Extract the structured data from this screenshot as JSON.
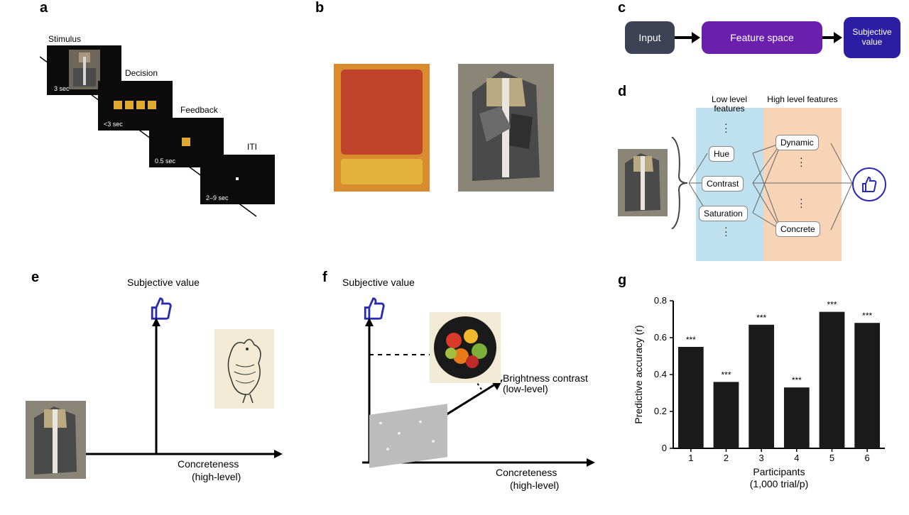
{
  "labels": {
    "a": "a",
    "b": "b",
    "c": "c",
    "d": "d",
    "e": "e",
    "f": "f",
    "g": "g"
  },
  "panel_a": {
    "cap_stimulus": "Stimulus",
    "cap_decision": "Decision",
    "cap_feedback": "Feedback",
    "cap_iti": "ITI",
    "t_stimulus": "3 sec",
    "t_decision": "<3 sec",
    "t_feedback": "0.5 sec",
    "t_iti": "2–9 sec"
  },
  "panel_c": {
    "input": "Input",
    "feature": "Feature space",
    "subj": "Subjective value",
    "colors": {
      "input_bg": "#3d4254",
      "feature_bg": "#6a1fad",
      "subj_bg": "#2b1ea2",
      "arrow": "#000000"
    }
  },
  "panel_d": {
    "low_title": "Low level features",
    "high_title": "High level features",
    "low": [
      "Hue",
      "Contrast",
      "Saturation"
    ],
    "high": [
      "Dynamic",
      "Concrete"
    ],
    "colors": {
      "low_bg": "#bfe0ef",
      "high_bg": "#f6d4b5"
    }
  },
  "axes": {
    "subj": "Subjective value",
    "concreteness": "Concreteness",
    "high_level": "(high-level)",
    "brightness": "Brightness contrast",
    "low_level": "(low-level)"
  },
  "panel_g": {
    "type": "bar",
    "ylabel": "Predictive accuracy (r)",
    "xlabel": "Participants",
    "xsub": "(1,000 trial/p)",
    "categories": [
      "1",
      "2",
      "3",
      "4",
      "5",
      "6"
    ],
    "values": [
      0.55,
      0.36,
      0.67,
      0.33,
      0.74,
      0.68
    ],
    "sig": [
      "***",
      "***",
      "***",
      "***",
      "***",
      "***"
    ],
    "ylim": [
      0,
      0.8
    ],
    "yticks": [
      0,
      0.2,
      0.4,
      0.6,
      0.8
    ],
    "bar_color": "#1a1a1a",
    "axis_color": "#000000",
    "bg": "#ffffff"
  },
  "images": {
    "gris_desc": "cubist portrait (grey/tan)",
    "rothko_desc": "orange/red color-field painting",
    "chicken_desc": "ink drawing of a chicken",
    "fruit_desc": "circular plate of colorful fruit"
  }
}
